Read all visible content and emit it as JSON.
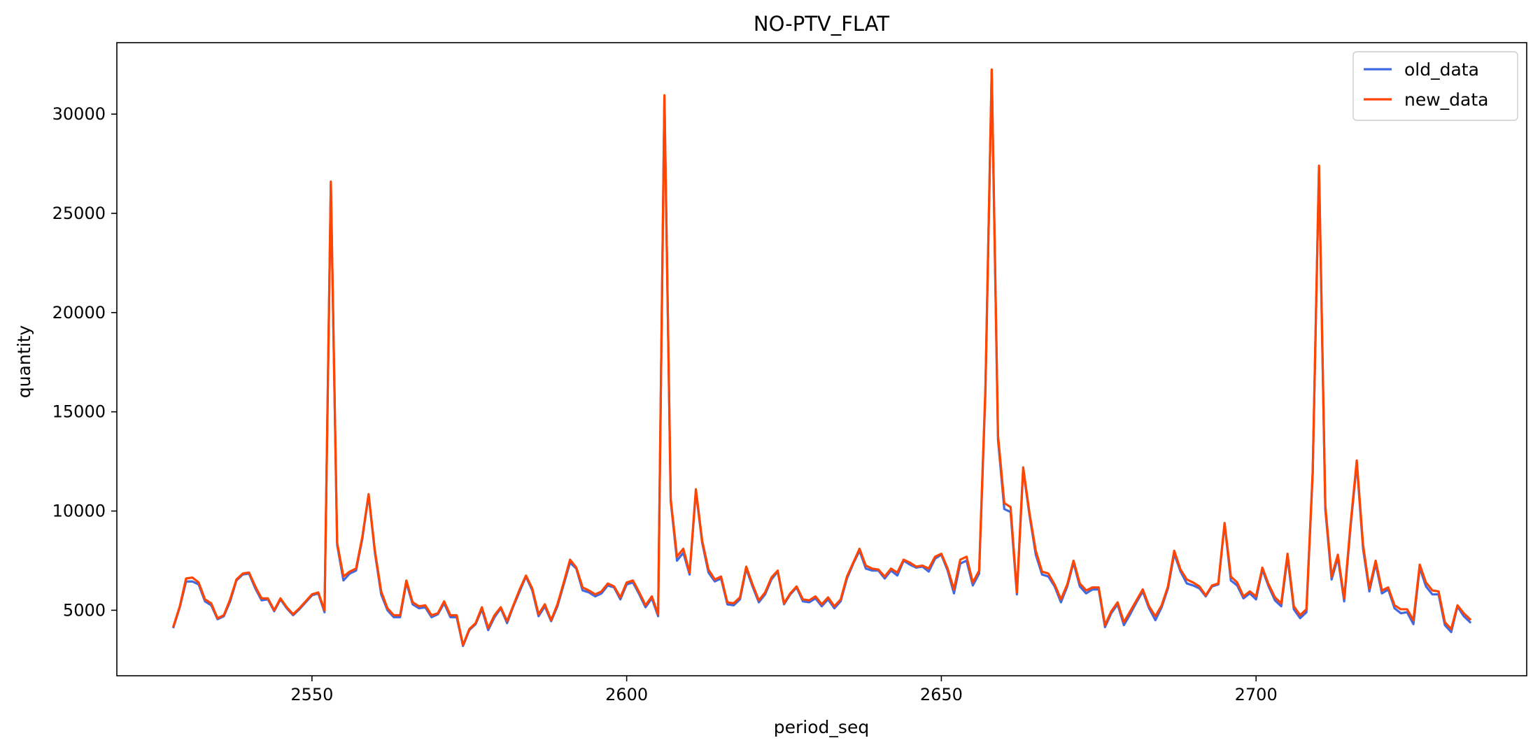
{
  "chart_data": {
    "type": "line",
    "title": "NO-PTV_FLAT",
    "xlabel": "period_seq",
    "ylabel": "quantity",
    "xlim": [
      2519,
      2743
    ],
    "ylim": [
      1700,
      33600
    ],
    "xticks": [
      2550,
      2600,
      2650,
      2700
    ],
    "yticks": [
      5000,
      10000,
      15000,
      20000,
      25000,
      30000
    ],
    "grid": false,
    "legend_position": "top-right",
    "x_start": 2528,
    "series": [
      {
        "name": "old_data",
        "color": "#4169e1",
        "values": [
          4150,
          5150,
          6450,
          6450,
          6300,
          5450,
          5250,
          4550,
          4700,
          5450,
          6500,
          6800,
          6850,
          6100,
          5500,
          5550,
          4950,
          5550,
          5100,
          4750,
          5050,
          5400,
          5750,
          5850,
          4900,
          26500,
          8300,
          6500,
          6850,
          7000,
          8600,
          10800,
          7900,
          5800,
          5000,
          4650,
          4650,
          6400,
          5300,
          5100,
          5150,
          4650,
          4800,
          5350,
          4650,
          4650,
          3200,
          4000,
          4300,
          5050,
          4000,
          4650,
          5100,
          4350,
          5200,
          5950,
          6700,
          6000,
          4700,
          5200,
          4450,
          5200,
          6300,
          7400,
          7100,
          6000,
          5900,
          5700,
          5850,
          6250,
          6150,
          5550,
          6300,
          6400,
          5800,
          5150,
          5600,
          4700,
          30900,
          10500,
          7500,
          7900,
          6800,
          11000,
          8400,
          6900,
          6450,
          6600,
          5300,
          5250,
          5550,
          7100,
          6200,
          5400,
          5800,
          6550,
          6950,
          5300,
          5800,
          6150,
          5450,
          5400,
          5600,
          5200,
          5550,
          5100,
          5450,
          6600,
          7350,
          8000,
          7100,
          7000,
          7000,
          6600,
          7000,
          6750,
          7500,
          7300,
          7150,
          7200,
          6950,
          7600,
          7800,
          7000,
          5850,
          7350,
          7500,
          6250,
          6850,
          16000,
          32200,
          13600,
          10100,
          9950,
          5800,
          12100,
          9800,
          7800,
          6800,
          6700,
          6200,
          5400,
          6200,
          7400,
          6200,
          5850,
          6050,
          6050,
          4150,
          4850,
          5300,
          4250,
          4800,
          5400,
          5950,
          5100,
          4500,
          5150,
          6100,
          7850,
          6950,
          6350,
          6250,
          6100,
          5700,
          6200,
          6300,
          9350,
          6500,
          6250,
          5600,
          5850,
          5550,
          7050,
          6200,
          5500,
          5200,
          7700,
          5050,
          4600,
          4900,
          11900,
          27300,
          10100,
          6550,
          7650,
          5450,
          9150,
          12400,
          8100,
          5950,
          7350,
          5850,
          6050,
          5100,
          4850,
          4900,
          4300,
          7150,
          6200,
          5800,
          5800,
          4250,
          3900,
          5200,
          4700,
          4400
        ]
      },
      {
        "name": "new_data",
        "color": "#ff4500",
        "values": [
          4200,
          5200,
          6600,
          6650,
          6400,
          5550,
          5350,
          4600,
          4750,
          5550,
          6550,
          6850,
          6900,
          6200,
          5600,
          5600,
          5000,
          5600,
          5150,
          4800,
          5100,
          5450,
          5800,
          5900,
          5000,
          26600,
          8400,
          6700,
          6950,
          7100,
          8700,
          10850,
          8000,
          5950,
          5100,
          4750,
          4750,
          6500,
          5400,
          5200,
          5250,
          4750,
          4850,
          5450,
          4750,
          4750,
          3250,
          4050,
          4350,
          5150,
          4100,
          4750,
          5150,
          4450,
          5250,
          6050,
          6750,
          6100,
          4800,
          5300,
          4500,
          5300,
          6400,
          7550,
          7150,
          6150,
          6000,
          5800,
          5950,
          6350,
          6200,
          5650,
          6400,
          6500,
          5900,
          5250,
          5700,
          4800,
          30950,
          10600,
          7700,
          8100,
          6900,
          11100,
          8500,
          7050,
          6550,
          6700,
          5400,
          5350,
          5650,
          7200,
          6300,
          5500,
          5900,
          6650,
          7000,
          5350,
          5850,
          6200,
          5550,
          5500,
          5700,
          5300,
          5650,
          5200,
          5550,
          6700,
          7400,
          8100,
          7250,
          7100,
          7050,
          6700,
          7100,
          6900,
          7550,
          7400,
          7200,
          7250,
          7100,
          7700,
          7850,
          7100,
          6050,
          7550,
          7700,
          6400,
          7000,
          16200,
          32250,
          13800,
          10400,
          10200,
          5900,
          12200,
          9900,
          8000,
          6950,
          6850,
          6300,
          5550,
          6300,
          7500,
          6350,
          6000,
          6150,
          6150,
          4250,
          4950,
          5400,
          4400,
          4950,
          5500,
          6050,
          5200,
          4700,
          5250,
          6200,
          8000,
          7050,
          6550,
          6400,
          6200,
          5750,
          6250,
          6350,
          9400,
          6700,
          6400,
          5700,
          5950,
          5700,
          7150,
          6300,
          5650,
          5350,
          7850,
          5200,
          4750,
          5050,
          12000,
          27400,
          10300,
          6700,
          7800,
          5600,
          9300,
          12550,
          8300,
          6100,
          7500,
          6000,
          6150,
          5250,
          5050,
          5050,
          4500,
          7300,
          6400,
          6000,
          5950,
          4400,
          4050,
          5250,
          4850,
          4550
        ]
      }
    ]
  }
}
